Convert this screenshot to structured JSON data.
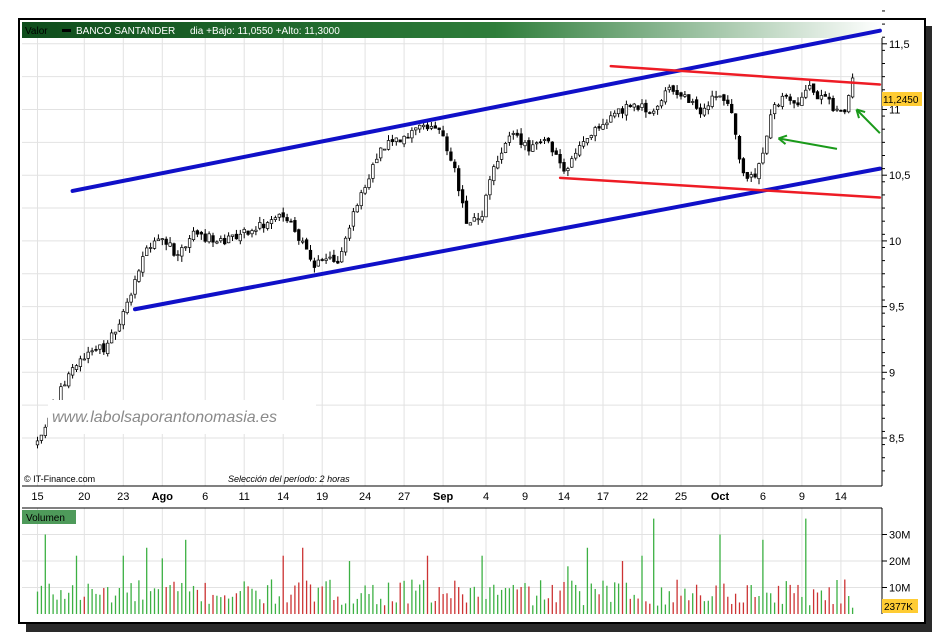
{
  "header": {
    "label": "Valor",
    "instrument": "BANCO SANTANDER",
    "stats": "dia +Bajo: 11,0550 +Alto: 11,3000"
  },
  "watermark": "www.labolsaporantonomasia.es",
  "source": "© IT-Finance.com",
  "period_note": "Selección del período: 2 horas",
  "colors": {
    "header_bg": "#1e6b2c",
    "channel_line": "#1010c8",
    "resistance_line": "#ee1c25",
    "arrow": "#1a9a1a",
    "up_volume": "#3cb043",
    "down_volume": "#cc3333",
    "last_price_box": "#ffcc33",
    "grid": "#e2e2e2"
  },
  "chart_data": [
    {
      "type": "candlestick",
      "title": "BANCO SANTANDER",
      "ylim": [
        8.2,
        11.75
      ],
      "y_ticks": [
        "8,5",
        "9",
        "9,5",
        "10",
        "10,5",
        "11",
        "11,5"
      ],
      "y_tick_values": [
        8.5,
        9,
        9.5,
        10,
        10.5,
        11,
        11.5
      ],
      "x_ticks": [
        "15",
        "20",
        "23",
        "Ago",
        "6",
        "11",
        "14",
        "19",
        "24",
        "27",
        "Sep",
        "4",
        "9",
        "14",
        "17",
        "22",
        "25",
        "Oct",
        "6",
        "9",
        "14"
      ],
      "x_tick_index": [
        0,
        12,
        22,
        32,
        43,
        53,
        63,
        73,
        84,
        94,
        104,
        115,
        125,
        135,
        145,
        155,
        165,
        175,
        186,
        196,
        206
      ],
      "last_price": "11,2450",
      "close_anchors": [
        [
          0,
          8.5
        ],
        [
          3,
          8.65
        ],
        [
          8,
          9.0
        ],
        [
          13,
          9.15
        ],
        [
          18,
          9.2
        ],
        [
          24,
          9.6
        ],
        [
          28,
          9.95
        ],
        [
          32,
          10.05
        ],
        [
          36,
          9.88
        ],
        [
          40,
          10.05
        ],
        [
          47,
          10.0
        ],
        [
          52,
          10.05
        ],
        [
          58,
          10.12
        ],
        [
          63,
          10.2
        ],
        [
          66,
          10.08
        ],
        [
          71,
          9.8
        ],
        [
          74,
          9.88
        ],
        [
          77,
          9.82
        ],
        [
          82,
          10.3
        ],
        [
          88,
          10.7
        ],
        [
          94,
          10.8
        ],
        [
          98,
          10.85
        ],
        [
          103,
          10.85
        ],
        [
          107,
          10.55
        ],
        [
          110,
          10.12
        ],
        [
          114,
          10.2
        ],
        [
          117,
          10.55
        ],
        [
          121,
          10.82
        ],
        [
          126,
          10.7
        ],
        [
          131,
          10.75
        ],
        [
          135,
          10.55
        ],
        [
          137,
          10.62
        ],
        [
          140,
          10.78
        ],
        [
          144,
          10.85
        ],
        [
          150,
          11.0
        ],
        [
          154,
          11.03
        ],
        [
          158,
          11.0
        ],
        [
          162,
          11.17
        ],
        [
          166,
          11.1
        ],
        [
          170,
          11.0
        ],
        [
          174,
          11.1
        ],
        [
          178,
          11.0
        ],
        [
          180,
          10.65
        ],
        [
          182,
          10.45
        ],
        [
          184,
          10.5
        ],
        [
          186,
          10.7
        ],
        [
          189,
          11.05
        ],
        [
          192,
          11.1
        ],
        [
          195,
          11.05
        ],
        [
          198,
          11.15
        ],
        [
          202,
          11.08
        ],
        [
          205,
          11.0
        ],
        [
          207,
          10.98
        ],
        [
          209,
          11.24
        ]
      ],
      "trend_lines": [
        {
          "name": "upper channel",
          "color": "blue",
          "from": [
            9,
            10.38
          ],
          "to": [
            216,
            11.6
          ]
        },
        {
          "name": "lower channel",
          "color": "blue",
          "from": [
            25,
            9.48
          ],
          "to": [
            216,
            10.55
          ]
        },
        {
          "name": "upper resistance",
          "color": "red",
          "from": [
            147,
            11.33
          ],
          "to": [
            216,
            11.19
          ]
        },
        {
          "name": "lower support",
          "color": "red",
          "from": [
            134,
            10.48
          ],
          "to": [
            216,
            10.33
          ]
        }
      ],
      "arrows": [
        {
          "from": [
            205,
            10.7
          ],
          "to": [
            190,
            10.78
          ]
        },
        {
          "from": [
            216,
            10.82
          ],
          "to": [
            210,
            11.0
          ]
        }
      ]
    },
    {
      "type": "bar",
      "title": "Volumen",
      "ylim": [
        0,
        40
      ],
      "y_ticks": [
        "10M",
        "20M",
        "30M"
      ],
      "y_tick_values": [
        10,
        20,
        30
      ],
      "last_value": "2377K",
      "base_volume_m": 9,
      "spikes_m": [
        [
          2,
          30
        ],
        [
          10,
          22
        ],
        [
          22,
          22
        ],
        [
          28,
          25
        ],
        [
          32,
          21
        ],
        [
          38,
          28
        ],
        [
          63,
          22
        ],
        [
          68,
          25
        ],
        [
          80,
          20
        ],
        [
          100,
          22
        ],
        [
          114,
          22
        ],
        [
          136,
          18
        ],
        [
          141,
          25
        ],
        [
          150,
          20
        ],
        [
          155,
          22
        ],
        [
          158,
          36
        ],
        [
          175,
          30
        ],
        [
          186,
          28
        ],
        [
          197,
          36
        ]
      ]
    }
  ]
}
